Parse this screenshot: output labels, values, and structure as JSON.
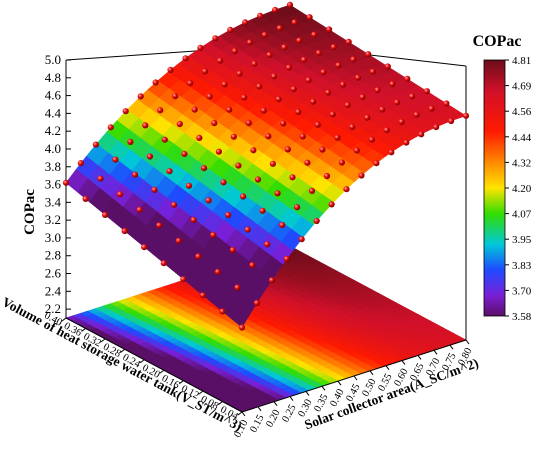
{
  "chart_data": {
    "type": "surface3d",
    "title": "",
    "zlabel": "COPac",
    "xlabel": "Volume of heat storage water tank(V_ST/m^3)",
    "ylabel": "Solar collector area(A_SC/m^2)",
    "x_ticks": [
      "0.40",
      "0.36",
      "0.32",
      "0.28",
      "0.24",
      "0.20",
      "0.16",
      "0.12",
      "0.08",
      "0.04"
    ],
    "y_ticks": [
      "0.10",
      "0.15",
      "0.20",
      "0.25",
      "0.30",
      "0.35",
      "0.40",
      "0.45",
      "0.50",
      "0.55",
      "0.60",
      "0.65",
      "0.70",
      "0.75",
      "0.80"
    ],
    "z_ticks": [
      "2.2",
      "2.4",
      "2.6",
      "2.8",
      "3.0",
      "3.2",
      "3.4",
      "3.6",
      "3.8",
      "4.0",
      "4.2",
      "4.4",
      "4.6",
      "4.8",
      "5.0"
    ],
    "zlim": [
      2.1,
      5.0
    ],
    "xlim": [
      0.04,
      0.4
    ],
    "ylim": [
      0.1,
      0.8
    ],
    "colorbar": {
      "title": "COPac",
      "ticks": [
        "4.81",
        "4.69",
        "4.56",
        "4.44",
        "4.32",
        "4.20",
        "4.07",
        "3.95",
        "3.83",
        "3.70",
        "3.58"
      ],
      "min": 3.58,
      "max": 4.81
    },
    "surface_points": [
      {
        "x": 0.4,
        "y": 0.1,
        "z": 3.62
      },
      {
        "x": 0.04,
        "y": 0.1,
        "z": 3.05
      },
      {
        "x": 0.4,
        "y": 0.8,
        "z": 4.81
      },
      {
        "x": 0.04,
        "y": 0.8,
        "z": 4.62
      },
      {
        "x": 0.4,
        "y": 0.45,
        "z": 4.55
      },
      {
        "x": 0.04,
        "y": 0.45,
        "z": 4.25
      }
    ],
    "grid": true,
    "projection": "contour-on-floor",
    "markers": "red spheres at grid nodes"
  }
}
